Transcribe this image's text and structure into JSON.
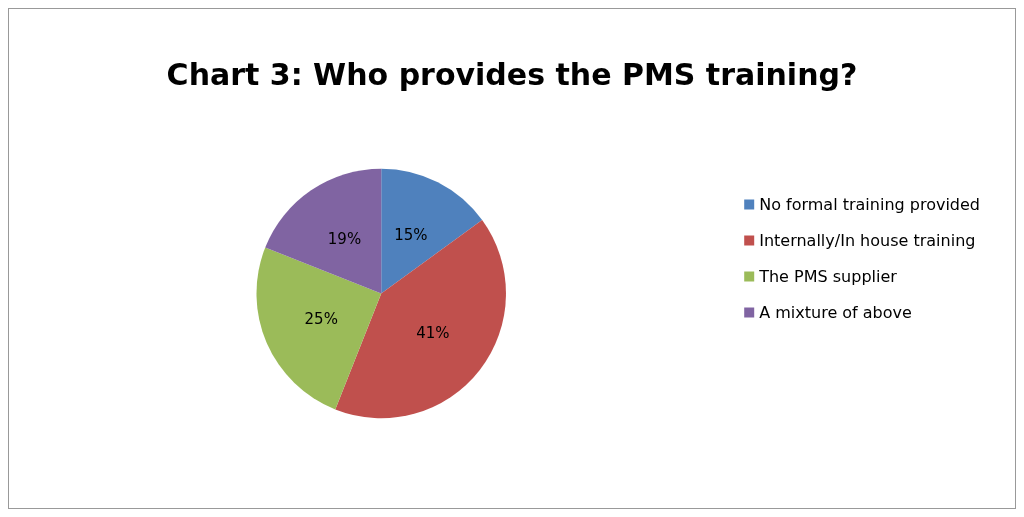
{
  "chart_data": {
    "type": "pie",
    "title": "Chart 3: Who provides the PMS training?",
    "categories": [
      "No formal training provided",
      "Internally/In house training",
      "The PMS supplier",
      "A mixture of above"
    ],
    "values": [
      15,
      41,
      25,
      19
    ],
    "colors": [
      "#4f81bd",
      "#c0504d",
      "#9bbb59",
      "#8064a2"
    ],
    "value_labels": [
      "15%",
      "41%",
      "25%",
      "19%"
    ],
    "legend": "right"
  }
}
